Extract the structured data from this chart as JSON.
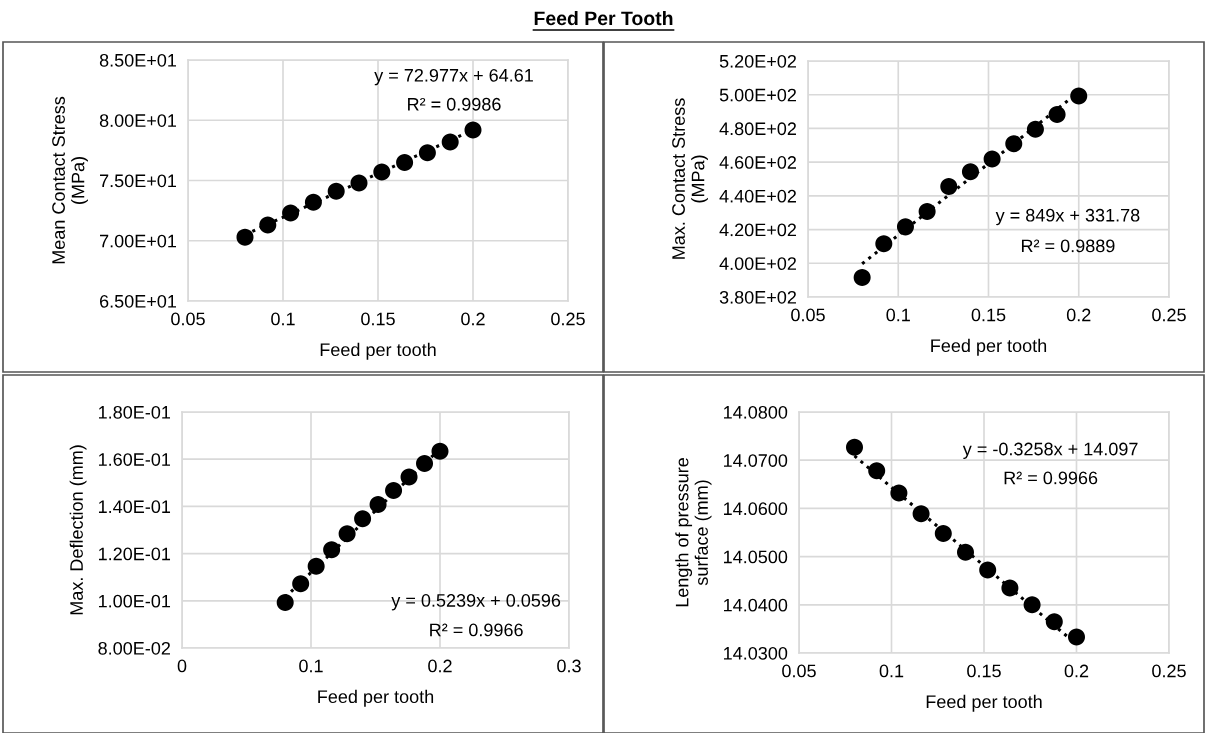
{
  "chart_data": [
    {
      "type": "scatter",
      "title": "Feed Per Tooth",
      "xlabel": "Feed per tooth",
      "ylabel": "Mean Contact Stress\n(MPa)",
      "marker": "circle",
      "grid": true,
      "xlim": [
        0.05,
        0.25
      ],
      "xticks": [
        0.05,
        0.1,
        0.15,
        0.2,
        0.25
      ],
      "ylim": [
        65,
        85
      ],
      "yticks": [
        {
          "value": 65,
          "label": "6.50E+01"
        },
        {
          "value": 70,
          "label": "7.00E+01"
        },
        {
          "value": 75,
          "label": "7.50E+01"
        },
        {
          "value": 80,
          "label": "8.00E+01"
        },
        {
          "value": 85,
          "label": "8.50E+01"
        }
      ],
      "annotations": [
        "y = 72.977x + 64.61",
        "R² = 0.9986"
      ],
      "series": [
        {
          "color": "#000000",
          "x": [
            0.08,
            0.092,
            0.104,
            0.116,
            0.128,
            0.14,
            0.152,
            0.164,
            0.176,
            0.188,
            0.2
          ],
          "values": [
            70.3,
            71.3,
            72.3,
            73.2,
            74.1,
            74.8,
            75.7,
            76.5,
            77.3,
            78.2,
            79.2
          ]
        },
        {
          "type": "line",
          "line_style": "dotted",
          "marker": "none",
          "color": "#000000",
          "x": [
            0.08,
            0.2
          ],
          "values": [
            70.5,
            79.2
          ]
        }
      ]
    },
    {
      "type": "scatter",
      "xlabel": "Feed per tooth",
      "ylabel": "Max. Contact Stress\n(MPa)",
      "marker": "circle",
      "grid": true,
      "xlim": [
        0.05,
        0.25
      ],
      "xticks": [
        0.05,
        0.1,
        0.15,
        0.2,
        0.25
      ],
      "ylim": [
        380,
        520
      ],
      "yticks": [
        {
          "value": 380,
          "label": "3.80E+02"
        },
        {
          "value": 400,
          "label": "4.00E+02"
        },
        {
          "value": 420,
          "label": "4.20E+02"
        },
        {
          "value": 440,
          "label": "4.40E+02"
        },
        {
          "value": 460,
          "label": "4.60E+02"
        },
        {
          "value": 480,
          "label": "4.80E+02"
        },
        {
          "value": 500,
          "label": "5.00E+02"
        },
        {
          "value": 520,
          "label": "5.20E+02"
        }
      ],
      "annotations": [
        "y = 849x + 331.78",
        "R² = 0.9889"
      ],
      "series": [
        {
          "color": "#000000",
          "x": [
            0.08,
            0.092,
            0.104,
            0.116,
            0.128,
            0.14,
            0.152,
            0.164,
            0.176,
            0.188,
            0.2
          ],
          "values": [
            391.6,
            411.6,
            421.6,
            430.7,
            445.5,
            454.3,
            461.8,
            470.9,
            479.5,
            488.2,
            499.3
          ]
        },
        {
          "type": "line",
          "line_style": "dotted",
          "marker": "none",
          "color": "#000000",
          "x": [
            0.08,
            0.2
          ],
          "values": [
            399.7,
            501.6
          ]
        }
      ]
    },
    {
      "type": "scatter",
      "xlabel": "Feed per tooth",
      "ylabel": "Max. Deflection (mm)",
      "marker": "circle",
      "grid": true,
      "xlim": [
        0,
        0.3
      ],
      "xticks": [
        0,
        0.1,
        0.2,
        0.3
      ],
      "ylim": [
        0.08,
        0.18
      ],
      "yticks": [
        {
          "value": 0.08,
          "label": "8.00E-02"
        },
        {
          "value": 0.1,
          "label": "1.00E-01"
        },
        {
          "value": 0.12,
          "label": "1.20E-01"
        },
        {
          "value": 0.14,
          "label": "1.40E-01"
        },
        {
          "value": 0.16,
          "label": "1.60E-01"
        },
        {
          "value": 0.18,
          "label": "1.80E-01"
        }
      ],
      "annotations": [
        "y = 0.5239x + 0.0596",
        "R² = 0.9966"
      ],
      "series": [
        {
          "color": "#000000",
          "x": [
            0.08,
            0.092,
            0.104,
            0.116,
            0.128,
            0.14,
            0.152,
            0.164,
            0.176,
            0.188,
            0.2
          ],
          "values": [
            0.0993,
            0.1072,
            0.1146,
            0.1216,
            0.1284,
            0.1348,
            0.1408,
            0.1467,
            0.1525,
            0.1582,
            0.1634
          ]
        },
        {
          "type": "line",
          "line_style": "dotted",
          "marker": "none",
          "color": "#000000",
          "x": [
            0.08,
            0.2
          ],
          "values": [
            0.1015,
            0.1644
          ]
        }
      ]
    },
    {
      "type": "scatter",
      "xlabel": "Feed per tooth",
      "ylabel": "Length of pressure\nsurface (mm)",
      "marker": "circle",
      "grid": true,
      "xlim": [
        0.05,
        0.25
      ],
      "xticks": [
        0.05,
        0.1,
        0.15,
        0.2,
        0.25
      ],
      "ylim": [
        14.03,
        14.08
      ],
      "yticks": [
        {
          "value": 14.03,
          "label": "14.0300"
        },
        {
          "value": 14.04,
          "label": "14.0400"
        },
        {
          "value": 14.05,
          "label": "14.0500"
        },
        {
          "value": 14.06,
          "label": "14.0600"
        },
        {
          "value": 14.07,
          "label": "14.0700"
        },
        {
          "value": 14.08,
          "label": "14.0800"
        }
      ],
      "annotations": [
        "y = -0.3258x + 14.097",
        "R² = 0.9966"
      ],
      "series": [
        {
          "color": "#000000",
          "x": [
            0.08,
            0.092,
            0.104,
            0.116,
            0.128,
            0.14,
            0.152,
            0.164,
            0.176,
            0.188,
            0.2
          ],
          "values": [
            14.0727,
            14.0678,
            14.0632,
            14.0589,
            14.0548,
            14.0509,
            14.0472,
            14.0435,
            14.04,
            14.0365,
            14.0333
          ]
        },
        {
          "type": "line",
          "line_style": "dotted",
          "marker": "none",
          "color": "#000000",
          "x": [
            0.08,
            0.2
          ],
          "values": [
            14.0709,
            14.0318
          ]
        }
      ]
    }
  ]
}
